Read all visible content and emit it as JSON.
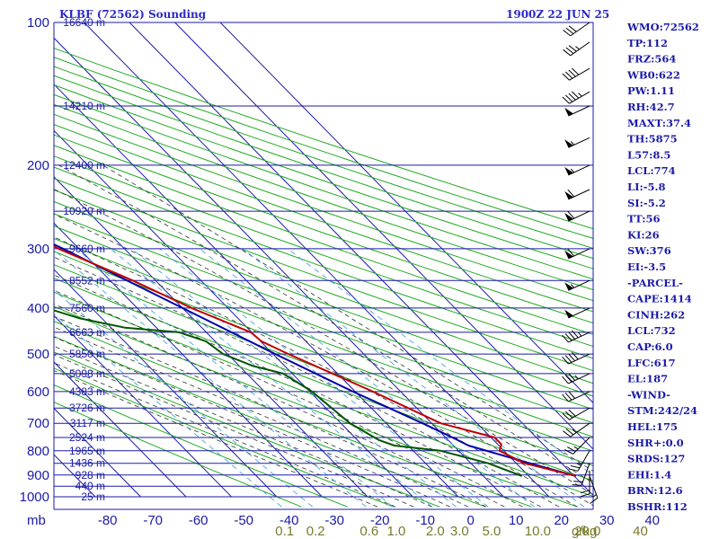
{
  "header": {
    "station": "KLBF (72562) Sounding",
    "time": "1900Z 22 JUN 25"
  },
  "indices": [
    "WMO:72562",
    "TP:112",
    "FRZ:564",
    "WB0:622",
    "PW:1.11",
    "RH:42.7",
    "MAXT:37.4",
    "TH:5875",
    "L57:8.5",
    "LCL:774",
    "LI:-5.8",
    "SI:-5.2",
    "TT:56",
    "KI:26",
    "SW:376",
    "EI:-3.5",
    "-PARCEL-",
    "CAPE:1414",
    "CINH:262",
    "LCL:732",
    "CAP:6.0",
    "LFC:617",
    "EL:187",
    "-WIND-",
    "STM:242/24",
    "HEL:175",
    "SHR+:0.0",
    "SRDS:127",
    "EHI:1.4",
    "BRN:12.6",
    "BSHR:112"
  ],
  "colors": {
    "isobar": "#1a1aa8",
    "isotherm": "#1a1aa8",
    "dry_adiabat": "#22aa22",
    "moist_adiabat": "#333333",
    "mixing_ratio": "#3399dd",
    "temperature": "#c00000",
    "dewpoint": "#005500",
    "parcel": "#0000aa",
    "barbs": "#000000"
  },
  "chart_data": {
    "type": "line",
    "title": "KLBF (72562) Sounding",
    "subtitle": "1900Z 22 JUN 25",
    "pressure_ticks": [
      "100",
      "200",
      "300",
      "400",
      "500",
      "600",
      "700",
      "800",
      "900",
      "1000"
    ],
    "pressure_unit": "mb",
    "temperature_ticks": [
      "-80",
      "-70",
      "-60",
      "-50",
      "-40",
      "-30",
      "-20",
      "-10",
      "0",
      "10",
      "20",
      "30",
      "40"
    ],
    "mixing_ratio_ticks": [
      "0.1",
      "0.2",
      "0.6",
      "1.0",
      "2.0",
      "3.0",
      "5.0",
      "10.0",
      "20.0",
      "40"
    ],
    "mixing_ratio_unit": "g/kg",
    "height_labels": [
      {
        "p": 100,
        "label": "16640 m"
      },
      {
        "p": 150,
        "label": "14210 m"
      },
      {
        "p": 200,
        "label": "12400 m"
      },
      {
        "p": 250,
        "label": "10920 m"
      },
      {
        "p": 300,
        "label": "9660 m"
      },
      {
        "p": 350,
        "label": "8552 m"
      },
      {
        "p": 400,
        "label": "7560 m"
      },
      {
        "p": 450,
        "label": "6663 m"
      },
      {
        "p": 500,
        "label": "5850 m"
      },
      {
        "p": 550,
        "label": "5098 m"
      },
      {
        "p": 600,
        "label": "4383 m"
      },
      {
        "p": 650,
        "label": "3726 m"
      },
      {
        "p": 700,
        "label": "3117 m"
      },
      {
        "p": 750,
        "label": "2524 m"
      },
      {
        "p": 800,
        "label": "1965 m"
      },
      {
        "p": 850,
        "label": "1436 m"
      },
      {
        "p": 900,
        "label": "928 m"
      },
      {
        "p": 950,
        "label": "440 m"
      },
      {
        "p": 1000,
        "label": "25 m"
      }
    ],
    "temperature_profile": [
      [
        904,
        30.4
      ],
      [
        850,
        21.8
      ],
      [
        800,
        19.0
      ],
      [
        775,
        20.8
      ],
      [
        750,
        20.8
      ],
      [
        700,
        12.0
      ],
      [
        600,
        3.9
      ],
      [
        500,
        -6.6
      ],
      [
        470,
        -9.8
      ],
      [
        450,
        -10.2
      ],
      [
        400,
        -18.0
      ],
      [
        350,
        -25.0
      ],
      [
        300,
        -34.5
      ],
      [
        250,
        -42.5
      ],
      [
        200,
        -52.5
      ],
      [
        175,
        -58.5
      ],
      [
        150,
        -62.3
      ],
      [
        140,
        -64.0
      ],
      [
        130,
        -66.0
      ],
      [
        120,
        -68.5
      ],
      [
        110,
        -71.0
      ],
      [
        104,
        -73.3
      ],
      [
        100,
        -74.0
      ]
    ],
    "dewpoint_profile": [
      [
        904,
        18.5
      ],
      [
        850,
        13.8
      ],
      [
        800,
        6.0
      ],
      [
        780,
        -3.0
      ],
      [
        760,
        -5.2
      ],
      [
        700,
        -8.0
      ],
      [
        600,
        -9.5
      ],
      [
        550,
        -12.0
      ],
      [
        530,
        -17.0
      ],
      [
        500,
        -21.0
      ],
      [
        470,
        -22.0
      ],
      [
        450,
        -26.0
      ],
      [
        440,
        -37.0
      ],
      [
        420,
        -45.0
      ],
      [
        400,
        -50.0
      ],
      [
        370,
        -55.0
      ],
      [
        360,
        -52.5
      ],
      [
        350,
        -52.0
      ],
      [
        320,
        -53.0
      ],
      [
        300,
        -54.0
      ],
      [
        280,
        -57.5
      ],
      [
        250,
        -61.0
      ],
      [
        240,
        -62.0
      ],
      [
        230,
        -64.5
      ],
      [
        220,
        -66.5
      ],
      [
        200,
        -68.0
      ],
      [
        190,
        -70.5
      ],
      [
        180,
        -74.5
      ],
      [
        170,
        -79.5
      ],
      [
        160,
        -84.0
      ],
      [
        150,
        -86.0
      ],
      [
        140,
        -88.0
      ]
    ],
    "parcel_profile": [
      [
        904,
        30.4
      ],
      [
        850,
        23.0
      ],
      [
        780,
        13.3
      ],
      [
        750,
        11.5
      ],
      [
        700,
        8.0
      ],
      [
        600,
        -0.5
      ],
      [
        500,
        -9.5
      ],
      [
        400,
        -20.0
      ],
      [
        300,
        -33.5
      ],
      [
        250,
        -43.0
      ],
      [
        200,
        -52.0
      ],
      [
        150,
        -62.5
      ],
      [
        140,
        -65.0
      ],
      [
        120,
        -69.0
      ]
    ],
    "wind_barbs": [
      {
        "p": 904,
        "dir": 160,
        "spd": 15
      },
      {
        "p": 880,
        "dir": 180,
        "spd": 20
      },
      {
        "p": 850,
        "dir": 200,
        "spd": 20
      },
      {
        "p": 800,
        "dir": 210,
        "spd": 25
      },
      {
        "p": 750,
        "dir": 225,
        "spd": 25
      },
      {
        "p": 700,
        "dir": 235,
        "spd": 25
      },
      {
        "p": 650,
        "dir": 240,
        "spd": 30
      },
      {
        "p": 600,
        "dir": 245,
        "spd": 30
      },
      {
        "p": 550,
        "dir": 245,
        "spd": 35
      },
      {
        "p": 500,
        "dir": 245,
        "spd": 40
      },
      {
        "p": 450,
        "dir": 245,
        "spd": 45
      },
      {
        "p": 400,
        "dir": 245,
        "spd": 50
      },
      {
        "p": 350,
        "dir": 245,
        "spd": 55
      },
      {
        "p": 300,
        "dir": 245,
        "spd": 60
      },
      {
        "p": 250,
        "dir": 245,
        "spd": 60
      },
      {
        "p": 225,
        "dir": 245,
        "spd": 60
      },
      {
        "p": 200,
        "dir": 245,
        "spd": 55
      },
      {
        "p": 175,
        "dir": 245,
        "spd": 55
      },
      {
        "p": 150,
        "dir": 245,
        "spd": 50
      },
      {
        "p": 140,
        "dir": 240,
        "spd": 45
      },
      {
        "p": 125,
        "dir": 240,
        "spd": 40
      },
      {
        "p": 110,
        "dir": 235,
        "spd": 35
      },
      {
        "p": 100,
        "dir": 235,
        "spd": 30
      }
    ],
    "grid": true,
    "legend": "none"
  }
}
